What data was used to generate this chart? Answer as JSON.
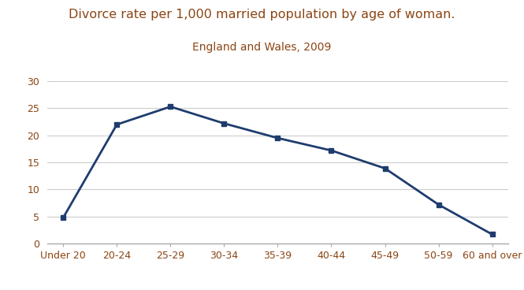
{
  "title": "Divorce rate per 1,000 married population by age of woman.",
  "subtitle": "England and Wales, 2009",
  "categories": [
    "Under 20",
    "20-24",
    "25-29",
    "30-34",
    "35-39",
    "40-44",
    "45-49",
    "50-59",
    "60 and over"
  ],
  "values": [
    4.8,
    22.0,
    25.3,
    22.2,
    19.5,
    17.2,
    13.9,
    7.2,
    1.7
  ],
  "line_color": "#1F3C6E",
  "marker_color": "#1F3C6E",
  "marker_style": "s",
  "marker_size": 5,
  "line_width": 2.0,
  "title_color": "#8B4513",
  "subtitle_color": "#8B4513",
  "title_fontsize": 11.5,
  "subtitle_fontsize": 10,
  "ylim": [
    0,
    30
  ],
  "yticks": [
    0,
    5,
    10,
    15,
    20,
    25,
    30
  ],
  "grid_color": "#cccccc",
  "bg_color": "#ffffff",
  "tick_label_color": "#8B4513",
  "tick_fontsize": 9,
  "spine_color": "#aaaaaa"
}
